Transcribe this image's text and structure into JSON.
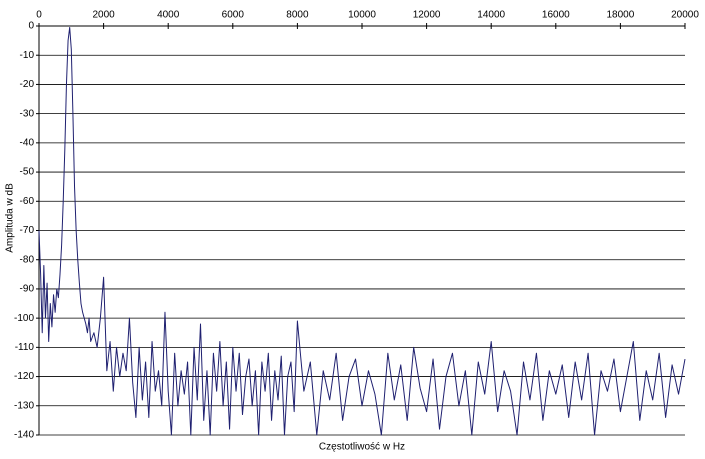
{
  "chart_data": {
    "type": "line",
    "x_label": "Częstotliwość w Hz",
    "y_label": "Amplituda w dB",
    "xlim": [
      0,
      20000
    ],
    "xticks": [
      0,
      2000,
      4000,
      6000,
      8000,
      10000,
      12000,
      14000,
      16000,
      18000,
      20000
    ],
    "ylim": [
      -140,
      0
    ],
    "yticks": [
      0,
      -10,
      -20,
      -30,
      -40,
      -50,
      -60,
      -70,
      -80,
      -90,
      -100,
      -110,
      -120,
      -130,
      -140
    ],
    "grid": true,
    "x_axis_position": "top",
    "series": [
      {
        "color": "#1f2070",
        "x": [
          0,
          50,
          100,
          150,
          200,
          250,
          300,
          350,
          400,
          450,
          500,
          550,
          600,
          650,
          700,
          750,
          800,
          850,
          900,
          950,
          1000,
          1050,
          1100,
          1150,
          1200,
          1250,
          1300,
          1350,
          1400,
          1450,
          1500,
          1550,
          1600,
          1700,
          1800,
          1900,
          2000,
          2100,
          2200,
          2300,
          2400,
          2500,
          2600,
          2700,
          2800,
          2900,
          3000,
          3100,
          3200,
          3300,
          3400,
          3500,
          3600,
          3700,
          3800,
          3900,
          4000,
          4100,
          4200,
          4300,
          4400,
          4500,
          4600,
          4700,
          4800,
          4900,
          5000,
          5100,
          5200,
          5300,
          5400,
          5500,
          5600,
          5700,
          5800,
          5900,
          6000,
          6100,
          6200,
          6300,
          6400,
          6500,
          6600,
          6700,
          6800,
          6900,
          7000,
          7100,
          7200,
          7300,
          7400,
          7500,
          7600,
          7700,
          7800,
          7900,
          8000,
          8200,
          8400,
          8600,
          8800,
          9000,
          9200,
          9400,
          9600,
          9800,
          10000,
          10200,
          10400,
          10600,
          10800,
          11000,
          11200,
          11400,
          11600,
          11800,
          12000,
          12200,
          12400,
          12600,
          12800,
          13000,
          13200,
          13400,
          13600,
          13800,
          14000,
          14200,
          14400,
          14600,
          14800,
          15000,
          15200,
          15400,
          15600,
          15800,
          16000,
          16200,
          16400,
          16600,
          16800,
          17000,
          17200,
          17400,
          17600,
          17800,
          18000,
          18200,
          18400,
          18600,
          18800,
          19000,
          19200,
          19400,
          19600,
          19800,
          20000
        ],
        "values": [
          -70,
          -85,
          -105,
          -82,
          -100,
          -88,
          -108,
          -95,
          -103,
          -92,
          -98,
          -90,
          -93,
          -85,
          -75,
          -60,
          -42,
          -20,
          -5,
          -0.5,
          -8,
          -30,
          -55,
          -70,
          -80,
          -88,
          -95,
          -98,
          -100,
          -102,
          -105,
          -100,
          -108,
          -105,
          -110,
          -100,
          -86,
          -118,
          -108,
          -125,
          -110,
          -120,
          -112,
          -118,
          -100,
          -122,
          -134,
          -110,
          -128,
          -115,
          -134,
          -108,
          -125,
          -118,
          -130,
          -98,
          -125,
          -140,
          -112,
          -130,
          -118,
          -126,
          -115,
          -140,
          -110,
          -128,
          -102,
          -135,
          -118,
          -140,
          -112,
          -125,
          -108,
          -130,
          -115,
          -138,
          -110,
          -125,
          -112,
          -133,
          -120,
          -114,
          -130,
          -118,
          -140,
          -115,
          -125,
          -112,
          -135,
          -118,
          -128,
          -113,
          -140,
          -120,
          -115,
          -132,
          -101,
          -125,
          -115,
          -140,
          -118,
          -128,
          -112,
          -135,
          -120,
          -114,
          -130,
          -118,
          -126,
          -140,
          -112,
          -128,
          -116,
          -135,
          -110,
          -124,
          -132,
          -114,
          -138,
          -120,
          -112,
          -130,
          -118,
          -140,
          -115,
          -126,
          -108,
          -132,
          -118,
          -125,
          -140,
          -115,
          -128,
          -112,
          -135,
          -118,
          -126,
          -116,
          -134,
          -115,
          -128,
          -112,
          -140,
          -118,
          -125,
          -114,
          -132,
          -120,
          -108,
          -135,
          -118,
          -128,
          -112,
          -134,
          -116,
          -126,
          -114
        ]
      }
    ]
  }
}
